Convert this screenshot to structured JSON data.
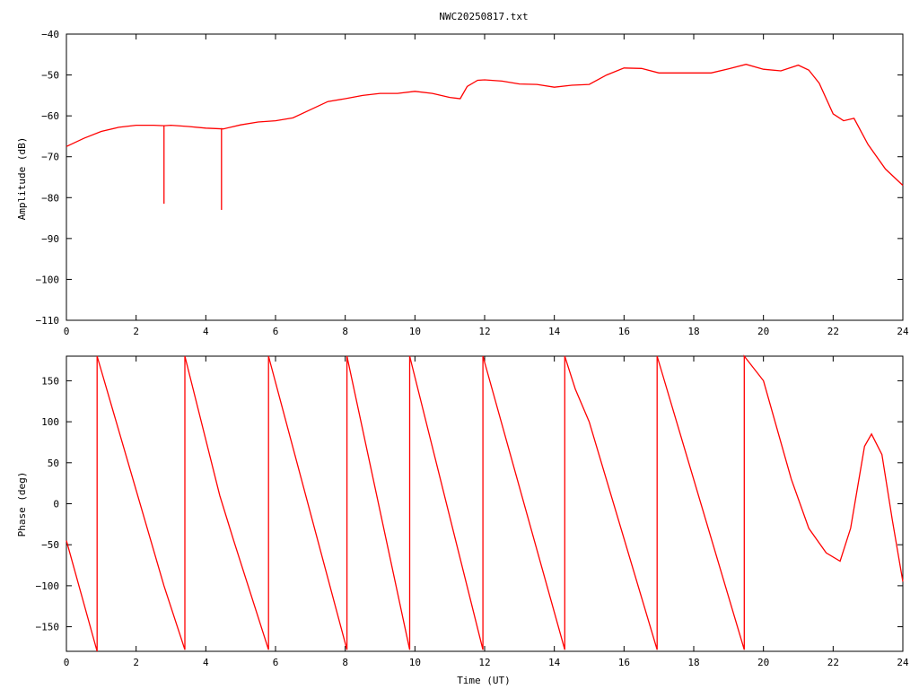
{
  "title": "NWC20250817.txt",
  "chart_data": [
    {
      "type": "line",
      "name": "amplitude",
      "xlabel": "",
      "ylabel": "Amplitude (dB)",
      "xlim": [
        0,
        24
      ],
      "ylim": [
        -110,
        -40
      ],
      "x_ticks": [
        0,
        2,
        4,
        6,
        8,
        10,
        12,
        14,
        16,
        18,
        20,
        22,
        24
      ],
      "y_ticks": [
        -110,
        -100,
        -90,
        -80,
        -70,
        -60,
        -50,
        -40
      ],
      "x_tick_labels": [
        "0",
        "2",
        "4",
        "6",
        "8",
        "10",
        "12",
        "14",
        "16",
        "18",
        "20",
        "22",
        "24"
      ],
      "y_tick_labels": [
        "−110",
        "−100",
        "−90",
        "−80",
        "−70",
        "−60",
        "−50",
        "−40"
      ],
      "grid": false,
      "color": "#ff0000",
      "series": [
        {
          "x": [
            0,
            0.5,
            1,
            1.5,
            2,
            2.5,
            2.8,
            3,
            3.5,
            4,
            4.5,
            5,
            5.5,
            6,
            6.5,
            7,
            7.5,
            8,
            8.5,
            9,
            9.5,
            10,
            10.5,
            11,
            11.3,
            11.5,
            11.8,
            12,
            12.5,
            13,
            13.5,
            14,
            14.5,
            15,
            15.5,
            16,
            16.5,
            17,
            17.5,
            18,
            18.5,
            19,
            19.5,
            20,
            20.5,
            21,
            21.3,
            21.6,
            22,
            22.3,
            22.6,
            23,
            23.5,
            24
          ],
          "y": [
            -67.5,
            -65.5,
            -63.8,
            -62.8,
            -62.3,
            -62.3,
            -62.4,
            -62.3,
            -62.6,
            -63,
            -63.2,
            -62.2,
            -61.5,
            -61.2,
            -60.5,
            -58.5,
            -56.5,
            -55.8,
            -55,
            -54.5,
            -54.5,
            -54,
            -54.5,
            -55.5,
            -55.8,
            -52.8,
            -51.3,
            -51.2,
            -51.5,
            -52.2,
            -52.3,
            -53,
            -52.5,
            -52.3,
            -50,
            -48.3,
            -48.4,
            -49.5,
            -49.5,
            -49.5,
            -49.5,
            -48.5,
            -47.4,
            -48.6,
            -49,
            -47.6,
            -48.8,
            -52,
            -59.5,
            -61.2,
            -60.6,
            -67,
            -73,
            -77
          ]
        }
      ],
      "spikes": [
        {
          "x": 2.8,
          "y_from": -62.5,
          "y_to": -81.5
        },
        {
          "x": 4.45,
          "y_from": -63,
          "y_to": -83
        }
      ]
    },
    {
      "type": "line",
      "name": "phase",
      "xlabel": "Time (UT)",
      "ylabel": "Phase (deg)",
      "xlim": [
        0,
        24
      ],
      "ylim": [
        -180,
        180
      ],
      "x_ticks": [
        0,
        2,
        4,
        6,
        8,
        10,
        12,
        14,
        16,
        18,
        20,
        22,
        24
      ],
      "y_ticks": [
        -150,
        -100,
        -50,
        0,
        50,
        100,
        150
      ],
      "x_tick_labels": [
        "0",
        "2",
        "4",
        "6",
        "8",
        "10",
        "12",
        "14",
        "16",
        "18",
        "20",
        "22",
        "24"
      ],
      "y_tick_labels": [
        "−150",
        "−100",
        "−50",
        "0",
        "50",
        "100",
        "150"
      ],
      "grid": false,
      "color": "#ff0000",
      "series": [
        {
          "x": [
            0,
            0.88,
            0.88,
            2.8,
            3.4,
            3.4,
            4.4,
            4.8,
            5.8,
            5.8,
            8.05,
            8.05,
            9.85,
            9.85,
            11.95,
            11.95,
            14.3,
            14.3,
            14.6,
            15,
            16.95,
            16.95,
            19.45,
            19.45,
            20,
            20.8,
            21.3,
            21.8,
            22.2,
            22.5,
            22.9,
            23.1,
            23.4,
            23.7,
            24
          ],
          "y": [
            -45,
            -180,
            180,
            -100,
            -178,
            180,
            10,
            -45,
            -178,
            180,
            -178,
            180,
            -178,
            180,
            -178,
            180,
            -178,
            180,
            140,
            100,
            -178,
            180,
            -178,
            180,
            150,
            30,
            -30,
            -60,
            -70,
            -30,
            70,
            85,
            60,
            -20,
            -95
          ]
        }
      ]
    }
  ]
}
